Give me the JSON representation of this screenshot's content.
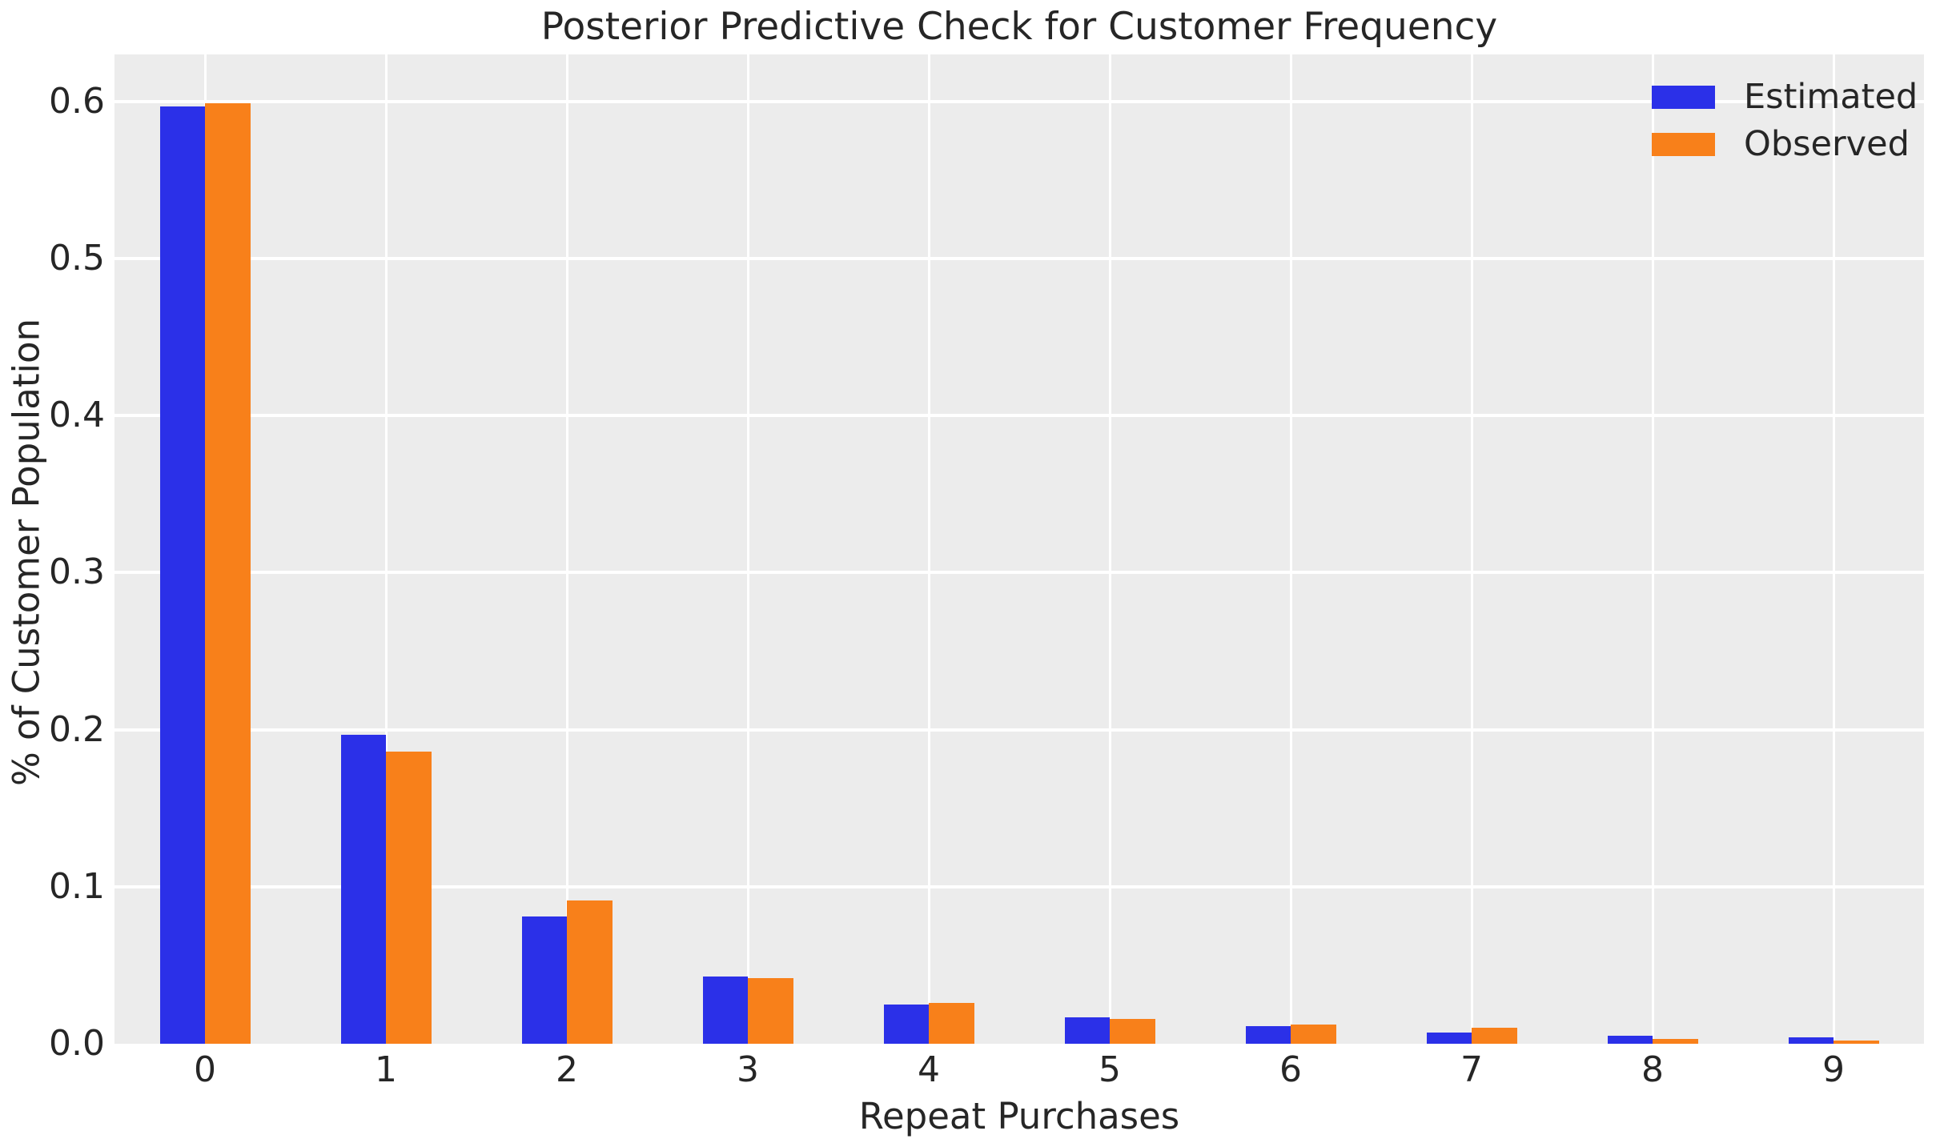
{
  "chart_data": {
    "type": "bar",
    "title": "Posterior Predictive Check for Customer Frequency",
    "xlabel": "Repeat Purchases",
    "ylabel": "% of Customer Population",
    "categories": [
      "0",
      "1",
      "2",
      "3",
      "4",
      "5",
      "6",
      "7",
      "8",
      "9"
    ],
    "series": [
      {
        "name": "Estimated",
        "color": "#2b30e8",
        "values": [
          0.597,
          0.197,
          0.081,
          0.043,
          0.025,
          0.017,
          0.011,
          0.007,
          0.005,
          0.004
        ]
      },
      {
        "name": "Observed",
        "color": "#f8801a",
        "values": [
          0.599,
          0.186,
          0.091,
          0.042,
          0.026,
          0.016,
          0.012,
          0.01,
          0.003,
          0.002
        ]
      }
    ],
    "ylim": [
      0,
      0.63
    ],
    "yticks": [
      0.0,
      0.1,
      0.2,
      0.3,
      0.4,
      0.5,
      0.6
    ],
    "ytick_labels": [
      "0.0",
      "0.1",
      "0.2",
      "0.3",
      "0.4",
      "0.5",
      "0.6"
    ],
    "grid": true,
    "legend_position": "upper right",
    "styles": {
      "figure_bg": "#ffffff",
      "plot_bg": "#ececec",
      "grid_color": "#ffffff",
      "text_color": "#262626"
    }
  }
}
